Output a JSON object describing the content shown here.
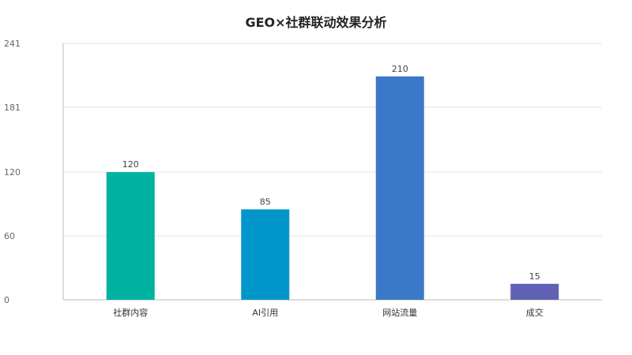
{
  "chart_data": {
    "type": "bar",
    "title": "GEO×社群联动效果分析",
    "categories": [
      "社群内容",
      "AI引用",
      "网站流量",
      "成交"
    ],
    "values": [
      120,
      85,
      210,
      15
    ],
    "colors": [
      "#00B3A1",
      "#0096C9",
      "#3C78C8",
      "#6060B4"
    ],
    "yticks": [
      0,
      60,
      120,
      181,
      241
    ],
    "ylim": [
      0,
      241
    ],
    "xlabel": "",
    "ylabel": "",
    "grid": true,
    "legend": "none"
  }
}
